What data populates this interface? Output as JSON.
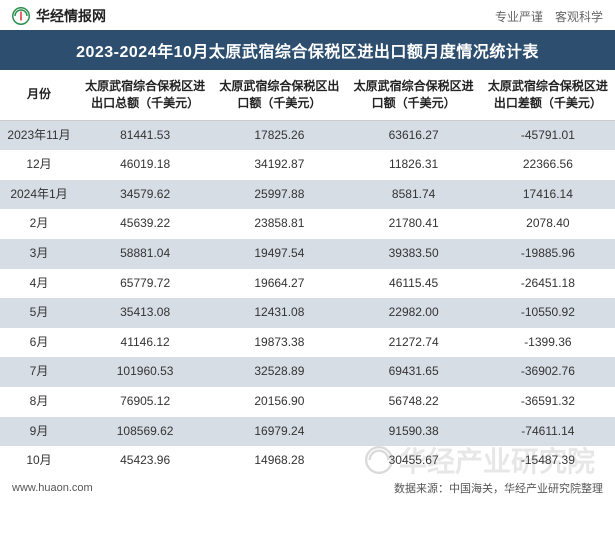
{
  "header": {
    "logo_text": "华经情报网",
    "tagline": "专业严谨　客观科学"
  },
  "title": "2023-2024年10月太原武宿综合保税区进出口额月度情况统计表",
  "columns": [
    "月份",
    "太原武宿综合保税区进出口总额（千美元）",
    "太原武宿综合保税区出口额（千美元）",
    "太原武宿综合保税区进口额（千美元）",
    "太原武宿综合保税区进出口差额（千美元）"
  ],
  "rows": [
    [
      "2023年11月",
      "81441.53",
      "17825.26",
      "63616.27",
      "-45791.01"
    ],
    [
      "12月",
      "46019.18",
      "34192.87",
      "11826.31",
      "22366.56"
    ],
    [
      "2024年1月",
      "34579.62",
      "25997.88",
      "8581.74",
      "17416.14"
    ],
    [
      "2月",
      "45639.22",
      "23858.81",
      "21780.41",
      "2078.40"
    ],
    [
      "3月",
      "58881.04",
      "19497.54",
      "39383.50",
      "-19885.96"
    ],
    [
      "4月",
      "65779.72",
      "19664.27",
      "46115.45",
      "-26451.18"
    ],
    [
      "5月",
      "35413.08",
      "12431.08",
      "22982.00",
      "-10550.92"
    ],
    [
      "6月",
      "41146.12",
      "19873.38",
      "21272.74",
      "-1399.36"
    ],
    [
      "7月",
      "101960.53",
      "32528.89",
      "69431.65",
      "-36902.76"
    ],
    [
      "8月",
      "76905.12",
      "20156.90",
      "56748.22",
      "-36591.32"
    ],
    [
      "9月",
      "108569.62",
      "16979.24",
      "91590.38",
      "-74611.14"
    ],
    [
      "10月",
      "45423.96",
      "14968.28",
      "30455.67",
      "-15487.39"
    ]
  ],
  "footer": {
    "site": "www.huaon.com",
    "source": "数据来源：中国海关，华经产业研究院整理"
  },
  "watermark": "华经产业研究院",
  "colors": {
    "title_bg": "#2d4e6f",
    "row_odd": "#d7dde5",
    "row_even": "#ffffff",
    "text": "#333333",
    "header_text": "#222222"
  }
}
